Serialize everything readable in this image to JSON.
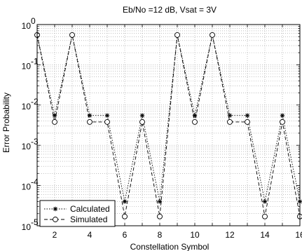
{
  "chart_data": {
    "type": "line",
    "title": "Eb/No =12 dB, Vsat = 3V",
    "xlabel": "Constellation Symbol",
    "ylabel": "Error Probability",
    "xlim": [
      1,
      16
    ],
    "ylim": [
      1e-05,
      1
    ],
    "yscale": "log",
    "grid": true,
    "legend_position": "bottom-left",
    "x": [
      1,
      2,
      3,
      4,
      5,
      6,
      7,
      8,
      9,
      10,
      11,
      12,
      13,
      14,
      15,
      16
    ],
    "xticks": [
      {
        "value": 2,
        "label": "2"
      },
      {
        "value": 4,
        "label": "4"
      },
      {
        "value": 6,
        "label": "6"
      },
      {
        "value": 8,
        "label": "8"
      },
      {
        "value": 10,
        "label": "10"
      },
      {
        "value": 12,
        "label": "12"
      },
      {
        "value": 14,
        "label": "14"
      },
      {
        "value": 16,
        "label": "16"
      }
    ],
    "yticks": [
      {
        "value": 1,
        "mant": "10",
        "exp": "0"
      },
      {
        "value": 0.1,
        "mant": "10",
        "exp": "-1"
      },
      {
        "value": 0.01,
        "mant": "10",
        "exp": "-2"
      },
      {
        "value": 0.001,
        "mant": "10",
        "exp": "-3"
      },
      {
        "value": 0.0001,
        "mant": "10",
        "exp": "-4"
      },
      {
        "value": 1e-05,
        "mant": "10",
        "exp": "-5"
      }
    ],
    "series": [
      {
        "name": "Calculated",
        "marker": "star",
        "line": "dotted",
        "values": [
          0.55,
          0.0055,
          0.55,
          0.0055,
          0.0055,
          4e-05,
          0.0055,
          4e-05,
          0.55,
          0.0055,
          0.55,
          0.0055,
          0.0055,
          4e-05,
          0.0055,
          4e-05
        ]
      },
      {
        "name": "Simulated",
        "marker": "circle",
        "line": "dashed",
        "values": [
          0.55,
          0.0038,
          0.55,
          0.0038,
          0.0038,
          1.7e-05,
          0.0038,
          1.7e-05,
          0.55,
          0.0038,
          0.55,
          0.0038,
          0.0038,
          1.7e-05,
          0.0038,
          1.7e-05
        ]
      }
    ]
  }
}
